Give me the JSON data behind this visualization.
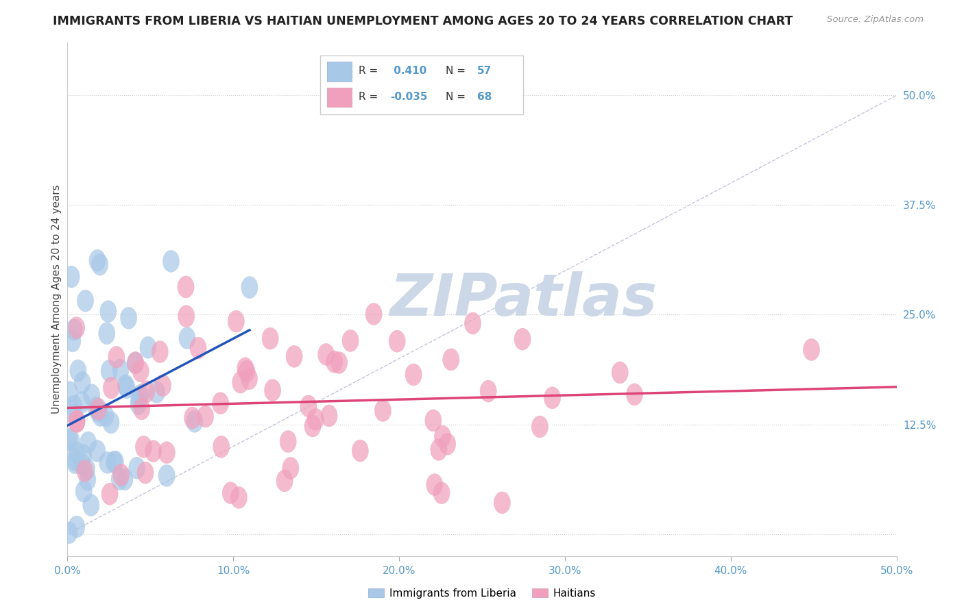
{
  "title": "IMMIGRANTS FROM LIBERIA VS HAITIAN UNEMPLOYMENT AMONG AGES 20 TO 24 YEARS CORRELATION CHART",
  "source_text": "Source: ZipAtlas.com",
  "ylabel": "Unemployment Among Ages 20 to 24 years",
  "xlim": [
    0.0,
    0.5
  ],
  "ylim": [
    -0.025,
    0.56
  ],
  "xtick_vals": [
    0.0,
    0.1,
    0.2,
    0.3,
    0.4,
    0.5
  ],
  "xticklabels": [
    "0.0%",
    "10.0%",
    "20.0%",
    "30.0%",
    "40.0%",
    "50.0%"
  ],
  "ytick_positions": [
    0.0,
    0.125,
    0.25,
    0.375,
    0.5
  ],
  "ytick_labels_right": [
    "",
    "12.5%",
    "25.0%",
    "37.5%",
    "50.0%"
  ],
  "grid_color": "#cccccc",
  "background_color": "#ffffff",
  "blue_color": "#a8c8e8",
  "pink_color": "#f0a0bc",
  "blue_line_color": "#2255bb",
  "pink_line_color": "#dd4477",
  "ref_line_color": "#aaaacc",
  "tick_color": "#5599cc",
  "title_color": "#222222",
  "source_color": "#999999",
  "ylabel_color": "#444444",
  "watermark_color": "#ccd8e8",
  "legend_R_blue": " 0.410",
  "legend_N_blue": "57",
  "legend_R_pink": "-0.035",
  "legend_N_pink": "68",
  "blue_seed": 10,
  "pink_seed": 20
}
